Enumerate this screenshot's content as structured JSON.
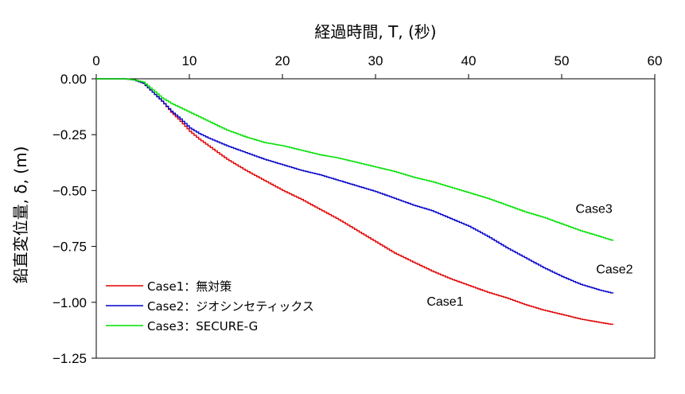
{
  "chart_data": {
    "type": "line",
    "xlabel": "経過時間, T, (秒)",
    "ylabel": "鉛直変位量, δ, (m)",
    "xlim": [
      0,
      60
    ],
    "ylim": [
      -1.25,
      0
    ],
    "x_ticks": [
      0,
      10,
      20,
      30,
      40,
      50,
      60
    ],
    "x_tick_labels": [
      "0",
      "10",
      "20",
      "30",
      "40",
      "50",
      "60"
    ],
    "y_ticks": [
      0,
      -0.25,
      -0.5,
      -0.75,
      -1.0,
      -1.25
    ],
    "y_tick_labels": [
      "0.00",
      "−0.25",
      "−0.50",
      "−0.75",
      "−1.00",
      "−1.25"
    ],
    "x_axis_position": "top",
    "grid": false,
    "legend_position": "bottom-left",
    "series": [
      {
        "name": "Case1：無対策",
        "color": "#e00000",
        "x": [
          0,
          3,
          4,
          5,
          6,
          7,
          8,
          9,
          10,
          11,
          12,
          14,
          16,
          18,
          20,
          22,
          24,
          26,
          28,
          30,
          32,
          34,
          36,
          38,
          40,
          42,
          44,
          46,
          48,
          50,
          52,
          54,
          55.5
        ],
        "y": [
          0,
          0,
          -0.005,
          -0.02,
          -0.06,
          -0.1,
          -0.15,
          -0.19,
          -0.235,
          -0.27,
          -0.3,
          -0.36,
          -0.41,
          -0.455,
          -0.5,
          -0.54,
          -0.585,
          -0.63,
          -0.68,
          -0.73,
          -0.78,
          -0.82,
          -0.86,
          -0.895,
          -0.925,
          -0.955,
          -0.98,
          -1.01,
          -1.035,
          -1.055,
          -1.075,
          -1.09,
          -1.1
        ]
      },
      {
        "name": "Case2：ジオシンセティックス",
        "color": "#0000c8",
        "x": [
          0,
          3,
          4,
          5,
          6,
          7,
          8,
          9,
          10,
          11,
          12,
          14,
          16,
          18,
          20,
          22,
          24,
          26,
          28,
          30,
          32,
          34,
          36,
          38,
          40,
          42,
          44,
          46,
          48,
          50,
          52,
          54,
          55.5
        ],
        "y": [
          0,
          0,
          -0.005,
          -0.02,
          -0.06,
          -0.1,
          -0.145,
          -0.18,
          -0.22,
          -0.245,
          -0.265,
          -0.3,
          -0.33,
          -0.36,
          -0.385,
          -0.41,
          -0.43,
          -0.455,
          -0.48,
          -0.505,
          -0.535,
          -0.565,
          -0.59,
          -0.625,
          -0.66,
          -0.705,
          -0.755,
          -0.8,
          -0.845,
          -0.885,
          -0.92,
          -0.945,
          -0.96
        ]
      },
      {
        "name": "Case3：SECURE-G",
        "color": "#00e000",
        "x": [
          0,
          3,
          4,
          5,
          6,
          7,
          8,
          9,
          10,
          11,
          12,
          14,
          16,
          18,
          20,
          22,
          24,
          26,
          28,
          30,
          32,
          34,
          36,
          38,
          40,
          42,
          44,
          46,
          48,
          50,
          52,
          54,
          55.5
        ],
        "y": [
          0,
          0,
          -0.005,
          -0.015,
          -0.05,
          -0.085,
          -0.11,
          -0.13,
          -0.15,
          -0.17,
          -0.19,
          -0.23,
          -0.26,
          -0.285,
          -0.3,
          -0.32,
          -0.34,
          -0.355,
          -0.375,
          -0.395,
          -0.415,
          -0.44,
          -0.46,
          -0.485,
          -0.51,
          -0.535,
          -0.565,
          -0.595,
          -0.62,
          -0.65,
          -0.68,
          -0.705,
          -0.725
        ]
      }
    ],
    "annotations": [
      {
        "text": "Case3",
        "x": 51.5,
        "y": -0.6
      },
      {
        "text": "Case2",
        "x": 53.7,
        "y": -0.87
      },
      {
        "text": "Case1",
        "x": 35.5,
        "y": -1.015
      }
    ]
  }
}
